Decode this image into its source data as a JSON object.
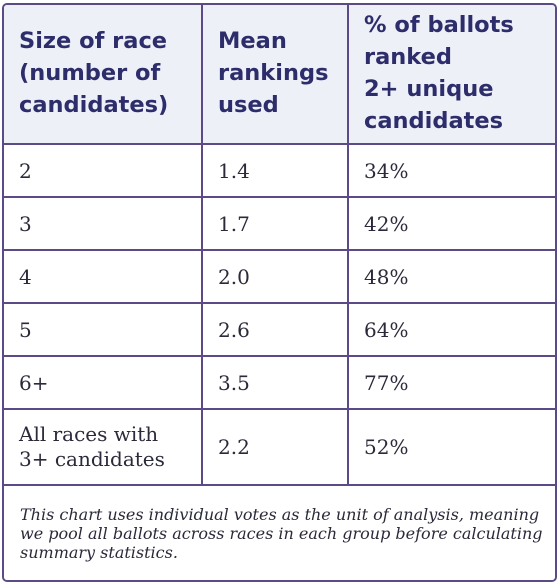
{
  "table": {
    "headers": [
      "Size of race\n(number of\ncandidates)",
      "Mean\nrankings\nused",
      "% of ballots\nranked\n2+ unique\ncandidates"
    ],
    "rows": [
      [
        "2",
        "1.4",
        "34%"
      ],
      [
        "3",
        "1.7",
        "42%"
      ],
      [
        "4",
        "2.0",
        "48%"
      ],
      [
        "5",
        "2.6",
        "64%"
      ],
      [
        "6+",
        "3.5",
        "77%"
      ],
      [
        "All races with\n3+ candidates",
        "2.2",
        "52%"
      ]
    ],
    "footnote": "This chart uses individual votes as the unit of analysis, meaning we pool all ballots across races in each group before calculating summary statistics."
  },
  "colors": {
    "border": "#5b4a85",
    "header_bg": "#eef0f7",
    "header_text": "#2e2d6b",
    "body_text": "#2a2a3a"
  }
}
